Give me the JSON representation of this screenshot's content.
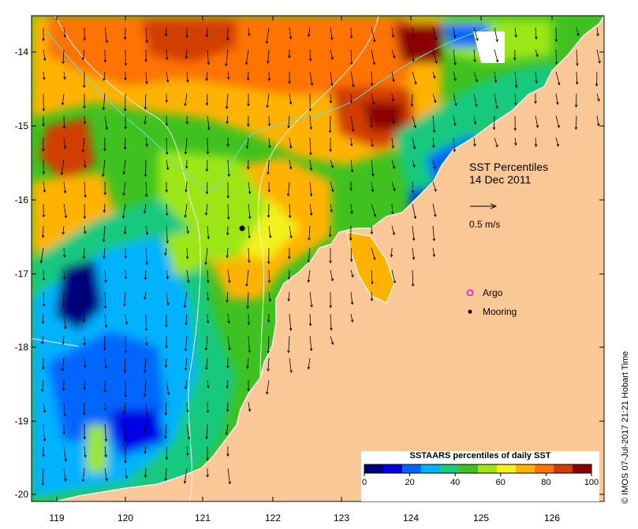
{
  "title": {
    "line1": "SST Percentiles",
    "line2": "14 Dec 2011"
  },
  "vector_scale": {
    "label": "0.5 m/s"
  },
  "legend": {
    "items": [
      {
        "label": "Argo",
        "color": "#ff00ff"
      },
      {
        "label": "Mooring",
        "color": "#000000"
      }
    ]
  },
  "credit": "© IMOS 07-Jul-2017 21:21 Hobart Time",
  "colorbar": {
    "title": "SSTAARS percentiles of daily SST",
    "ticks": [
      "0",
      "20",
      "40",
      "60",
      "80",
      "100"
    ],
    "colors": [
      "#00007f",
      "#0000e6",
      "#0066ff",
      "#00b2ff",
      "#19c97f",
      "#3fc21f",
      "#9de612",
      "#f2f21a",
      "#ffb300",
      "#ff7300",
      "#d23c00",
      "#8b0000"
    ]
  },
  "axes": {
    "x_ticks": [
      "119",
      "120",
      "121",
      "122",
      "123",
      "124",
      "125",
      "126"
    ],
    "y_ticks": [
      "-14",
      "-15",
      "-16",
      "-17",
      "-18",
      "-19",
      "-20"
    ]
  },
  "colors": {
    "land": "#fac896",
    "coast": "#ffffff",
    "axis": "#000000"
  }
}
